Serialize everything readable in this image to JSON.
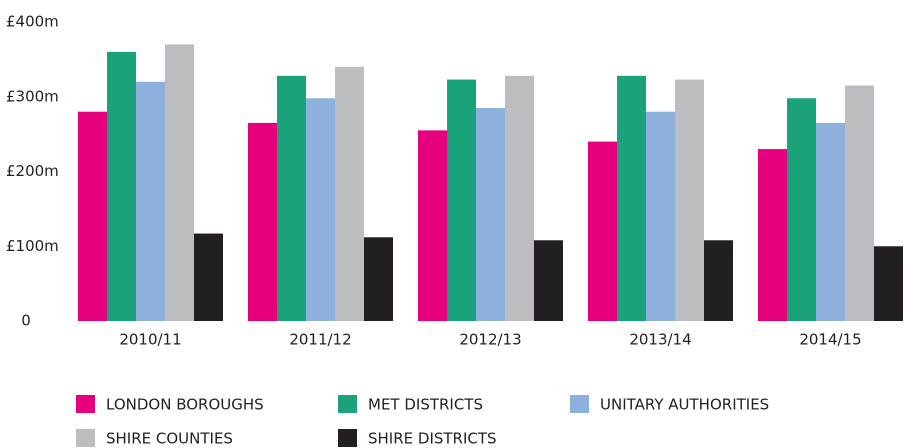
{
  "chart_data": {
    "type": "bar",
    "categories": [
      "2010/11",
      "2011/12",
      "2012/13",
      "2013/14",
      "2014/15"
    ],
    "series": [
      {
        "name": "LONDON BOROUGHS",
        "color": "#e6007e",
        "values": [
          280,
          265,
          255,
          240,
          230
        ]
      },
      {
        "name": "MET DISTRICTS",
        "color": "#1aa37a",
        "values": [
          360,
          328,
          323,
          328,
          298
        ]
      },
      {
        "name": "UNITARY AUTHORITIES",
        "color": "#8eb0dd",
        "values": [
          320,
          298,
          285,
          280,
          265
        ]
      },
      {
        "name": "SHIRE COUNTIES",
        "color": "#bcbdc0",
        "values": [
          370,
          340,
          328,
          323,
          315
        ]
      },
      {
        "name": "SHIRE DISTRICTS",
        "color": "#231f20",
        "values": [
          117,
          112,
          108,
          108,
          100
        ]
      }
    ],
    "ylim": [
      0,
      400
    ],
    "yticks": [
      0,
      {
        "value": 100,
        "label": "£100m"
      },
      {
        "value": 200,
        "label": "£200m"
      },
      {
        "value": 300,
        "label": "£300m"
      },
      {
        "value": 400,
        "label": "£400m"
      }
    ],
    "grid": false
  }
}
